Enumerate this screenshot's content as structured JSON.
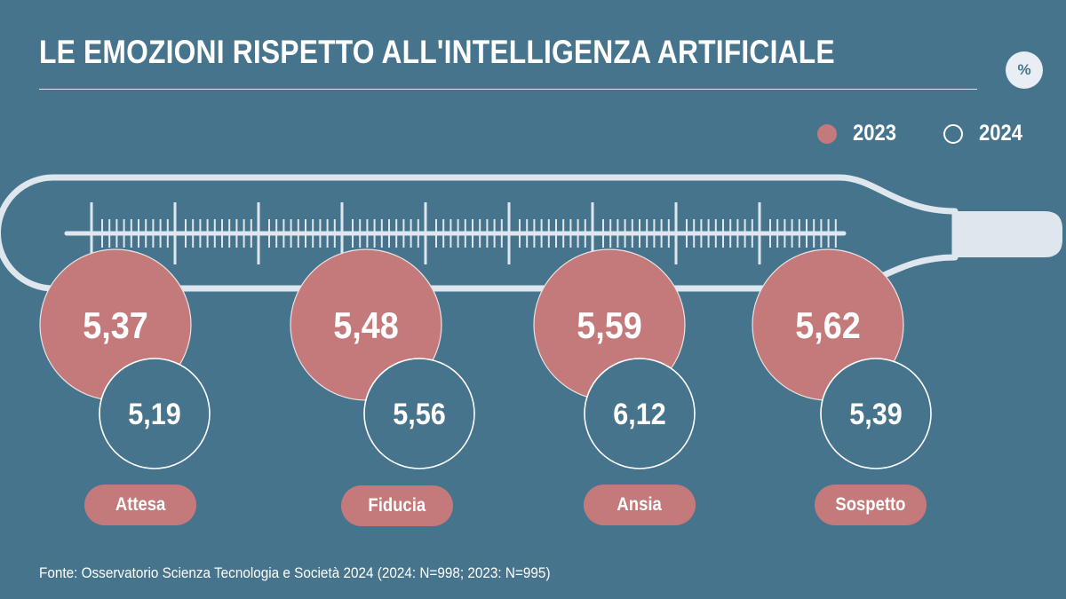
{
  "header": {
    "title": "LE EMOZIONI RISPETTO ALL'INTELLIGENZA ARTIFICIALE",
    "unit": "%"
  },
  "legend": [
    {
      "label": "2023",
      "style": "filled"
    },
    {
      "label": "2024",
      "style": "outline"
    }
  ],
  "colors": {
    "background": "#47748d",
    "series_2023": "#c47a7b",
    "series_2024_outline": "#ffffff",
    "thermometer": "#dfe7ee"
  },
  "chart_data": {
    "type": "bubble",
    "categories": [
      "Attesa",
      "Fiducia",
      "Ansia",
      "Sospetto"
    ],
    "series": [
      {
        "name": "2023",
        "values": [
          5.37,
          5.48,
          5.59,
          5.62
        ],
        "labels": [
          "5,37",
          "5,48",
          "5,59",
          "5,62"
        ]
      },
      {
        "name": "2024",
        "values": [
          5.19,
          5.56,
          6.12,
          5.39
        ],
        "labels": [
          "5,19",
          "5,56",
          "6,12",
          "5,39"
        ]
      }
    ]
  },
  "footer": {
    "source": "Fonte: Osservatorio Scienza Tecnologia e Società 2024 (2024: N=998; 2023: N=995)"
  }
}
